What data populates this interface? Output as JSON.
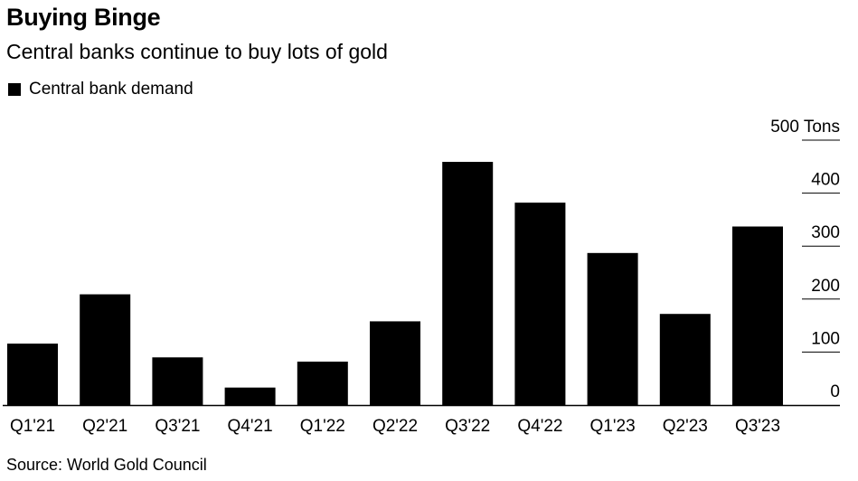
{
  "title": "Buying Binge",
  "subtitle": "Central banks continue to buy lots of gold",
  "source": "Source: World Gold Council",
  "colors": {
    "bar": "#000000",
    "grid": "#000000",
    "text": "#000000"
  },
  "chart_data": {
    "type": "bar",
    "title": "Buying Binge",
    "subtitle": "Central banks continue to buy lots of gold",
    "categories": [
      "Q1'21",
      "Q2'21",
      "Q3'21",
      "Q4'21",
      "Q1'22",
      "Q2'22",
      "Q3'22",
      "Q4'22",
      "Q1'23",
      "Q2'23",
      "Q3'23"
    ],
    "series": [
      {
        "name": "Central bank demand",
        "values": [
          116,
          209,
          90,
          33,
          82,
          158,
          459,
          382,
          287,
          172,
          337
        ]
      }
    ],
    "ylim": [
      0,
      500
    ],
    "yticks": [
      0,
      100,
      200,
      300,
      400,
      500
    ],
    "ytick_labels": [
      "0",
      "100",
      "200",
      "300",
      "400",
      "500 Tons"
    ],
    "xlabel": "",
    "ylabel": "Tons",
    "legend": "top-left"
  }
}
